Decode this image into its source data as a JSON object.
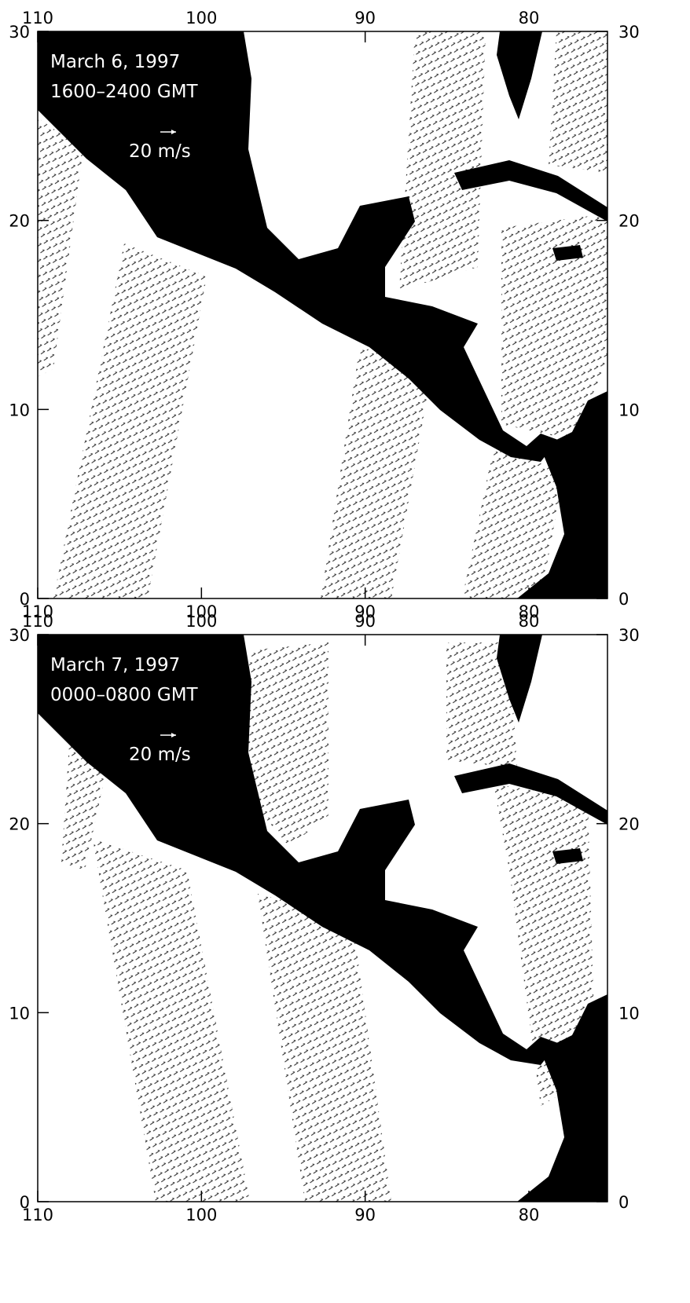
{
  "panels": [
    {
      "xlim": [
        110,
        75.2
      ],
      "ylim": [
        0,
        30
      ],
      "xticks": [
        110,
        100,
        90,
        80
      ],
      "yticks": [
        0,
        10,
        20,
        30
      ],
      "date": "March 6, 1997",
      "time": "1600–2400 GMT",
      "scale_label": "20 m/s"
    },
    {
      "xlim": [
        110,
        75.2
      ],
      "ylim": [
        0,
        30
      ],
      "xticks": [
        110,
        100,
        90,
        80
      ],
      "yticks": [
        0,
        10,
        20,
        30
      ],
      "date": "March 7, 1997",
      "time": "0000–0800 GMT",
      "scale_label": "20 m/s"
    }
  ]
}
